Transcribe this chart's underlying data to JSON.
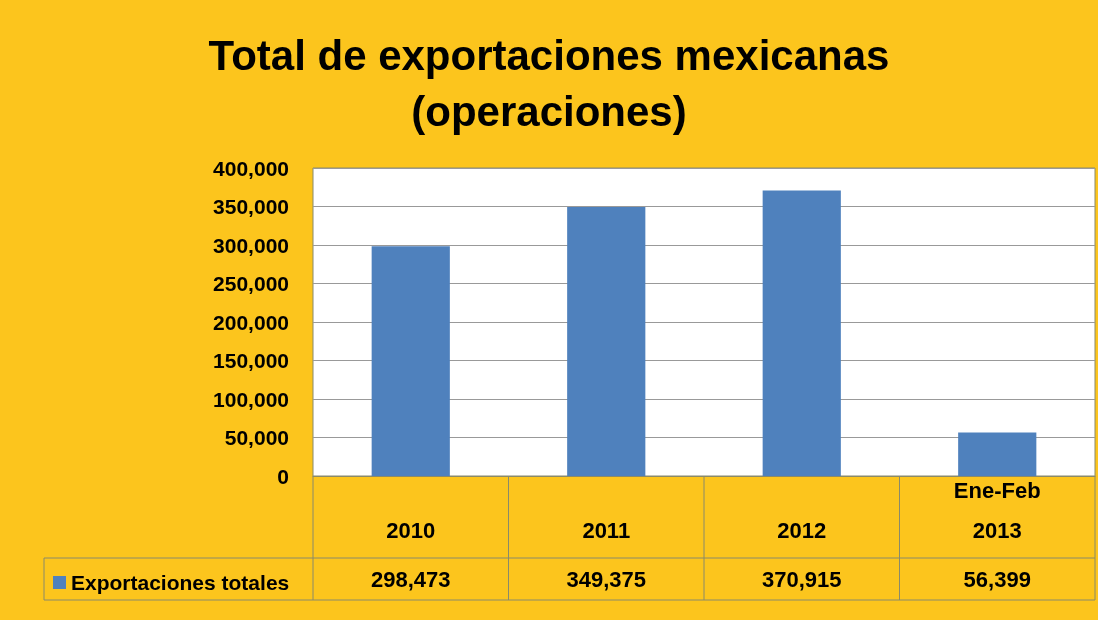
{
  "chart_data": {
    "type": "bar",
    "title": "Total de exportaciones mexicanas\n(operaciones)",
    "categories": [
      "2010",
      "2011",
      "2012",
      "Ene-Feb\n2013"
    ],
    "series": [
      {
        "name": "Exportaciones totales",
        "color": "#4f81bd",
        "values": [
          298473,
          349375,
          370915,
          56399
        ],
        "value_labels": [
          "298,473",
          "349,375",
          "370,915",
          "56,399"
        ]
      }
    ],
    "ylim": [
      0,
      400000
    ],
    "yticks": [
      {
        "value": 0,
        "label": "0"
      },
      {
        "value": 50000,
        "label": "50,000"
      },
      {
        "value": 100000,
        "label": "100,000"
      },
      {
        "value": 150000,
        "label": "150,000"
      },
      {
        "value": 200000,
        "label": "200,000"
      },
      {
        "value": 250000,
        "label": "250,000"
      },
      {
        "value": 300000,
        "label": "300,000"
      },
      {
        "value": 350000,
        "label": "350,000"
      },
      {
        "value": 400000,
        "label": "400,000"
      }
    ],
    "grid": "y",
    "legend": "bottom left"
  }
}
